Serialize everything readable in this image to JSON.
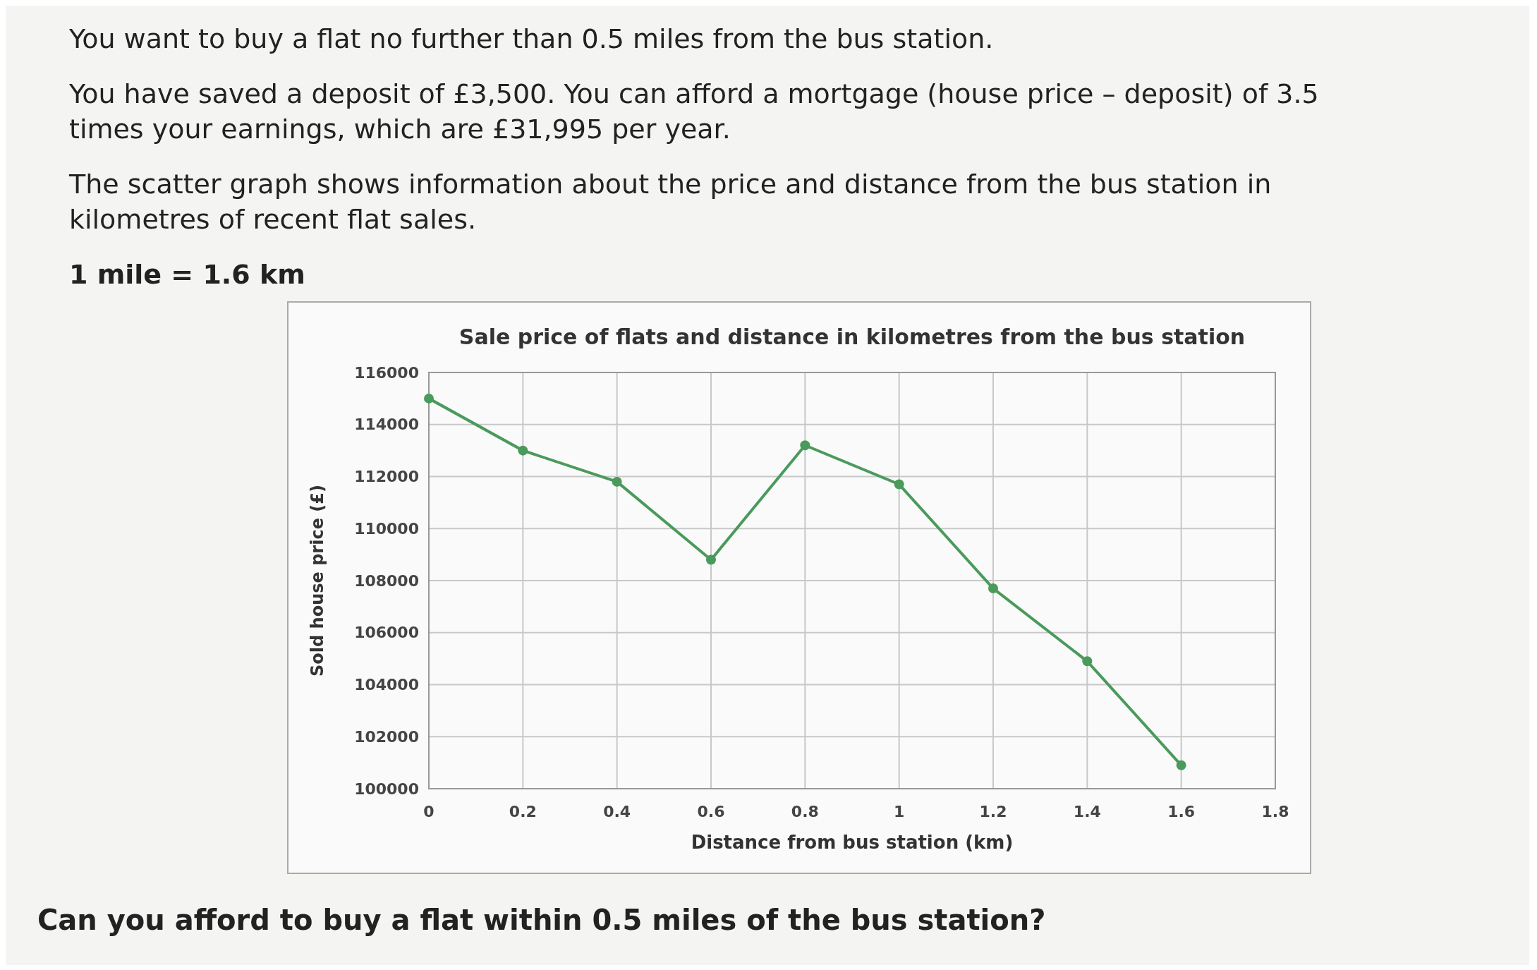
{
  "chart_data": {
    "type": "line",
    "title": "Sale price of flats and distance in kilometres from the bus station",
    "xlabel": "Distance from bus station (km)",
    "ylabel": "Sold house price (£)",
    "annotations": [
      "You want to buy a flat no further than 0.5 miles from the bus station.",
      "You have saved a deposit of £3,500. You can afford a mortgage (house price – deposit) of 3.5 times your earnings, which are £31,995 per year.",
      "The scatter graph shows information about the price and distance from the bus station in kilometres of recent flat sales.",
      "1 mile = 1.6 km",
      "Can you afford to buy a flat within 0.5 miles of the bus station?"
    ],
    "x": [
      0,
      0.2,
      0.4,
      0.6,
      0.8,
      1,
      1.2,
      1.4,
      1.6
    ],
    "series": [
      {
        "color": "#4a9a5c",
        "values": [
          115000,
          113000,
          111800,
          108800,
          113200,
          111700,
          107700,
          104900,
          100900
        ]
      }
    ],
    "xlim": [
      0,
      1.8
    ],
    "xticks": [
      0,
      0.2,
      0.4,
      0.6,
      0.8,
      1,
      1.2,
      1.4,
      1.6,
      1.8
    ],
    "ylim": [
      100000,
      116000
    ],
    "yticks": [
      100000,
      102000,
      104000,
      106000,
      108000,
      110000,
      112000,
      114000,
      116000
    ],
    "grid": true,
    "marker": "circle",
    "line_style": "solid"
  }
}
